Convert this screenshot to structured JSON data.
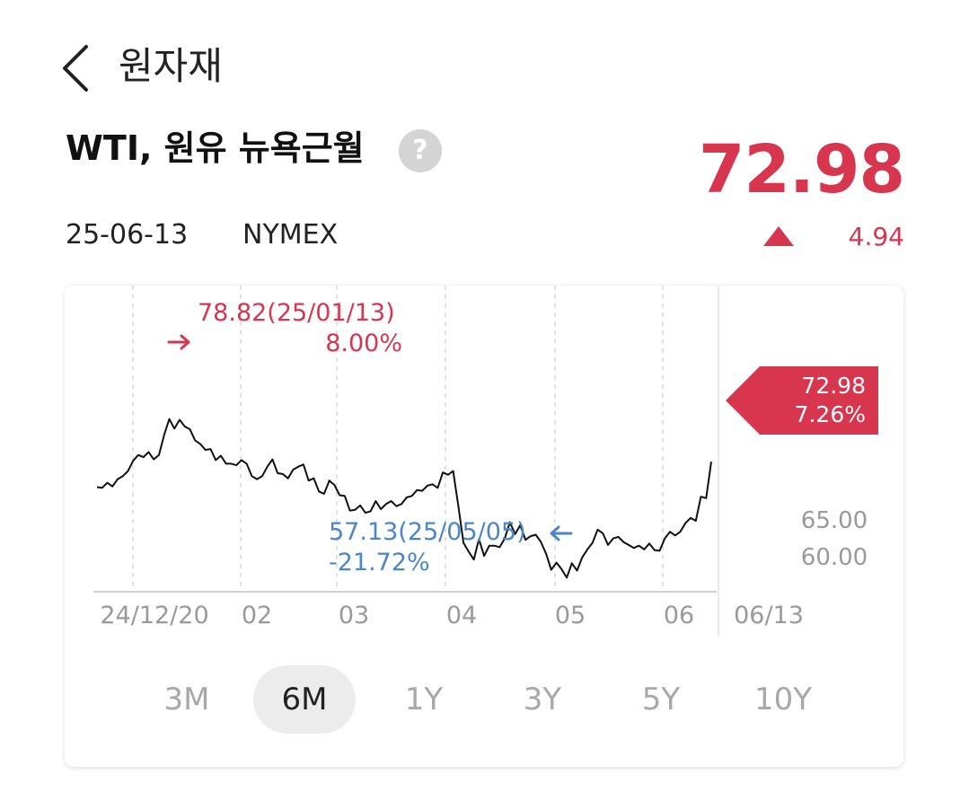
{
  "header": {
    "title": "원자재"
  },
  "asset": {
    "name": "WTI, 원유 뉴욕근월",
    "help": "?",
    "price": "72.98",
    "date": "25-06-13",
    "exchange": "NYMEX",
    "change": "4.94"
  },
  "colors": {
    "up": "#d8354f",
    "down": "#4a86c8",
    "line": "#111111",
    "grid": "#d8d8d8"
  },
  "icons": {
    "back": "chevron-left-icon",
    "help": "question-mark-icon",
    "up": "triangle-up-icon",
    "high_arrow": "arrow-right-icon",
    "low_arrow": "arrow-left-icon"
  },
  "chart_data": {
    "type": "line",
    "x_labels": [
      "24/12/20",
      "02",
      "03",
      "04",
      "05",
      "06",
      "06/13"
    ],
    "y_ticks": [
      "65.00",
      "60.00"
    ],
    "ylim": [
      53,
      80
    ],
    "grid": true,
    "series": [
      {
        "x": [
          "24/12/20",
          "24/12/23",
          "24/12/24",
          "24/12/26",
          "24/12/27",
          "24/12/30",
          "24/12/31",
          "25/01/02",
          "25/01/03",
          "25/01/06",
          "25/01/07",
          "25/01/08",
          "25/01/09",
          "25/01/10",
          "25/01/13",
          "25/01/14",
          "25/01/15",
          "25/01/16",
          "25/01/17",
          "25/01/21",
          "25/01/22",
          "25/01/23",
          "25/01/24",
          "25/01/27",
          "25/01/28",
          "25/01/29",
          "25/01/30",
          "25/01/31",
          "25/02/03",
          "25/02/04",
          "25/02/05",
          "25/02/06",
          "25/02/07",
          "25/02/10",
          "25/02/11",
          "25/02/12",
          "25/02/13",
          "25/02/14",
          "25/02/18",
          "25/02/19",
          "25/02/20",
          "25/02/21",
          "25/02/24",
          "25/02/25",
          "25/02/26",
          "25/02/27",
          "25/02/28",
          "25/03/03",
          "25/03/04",
          "25/03/05",
          "25/03/06",
          "25/03/07",
          "25/03/10",
          "25/03/11",
          "25/03/12",
          "25/03/13",
          "25/03/14",
          "25/03/17",
          "25/03/18",
          "25/03/19",
          "25/03/20",
          "25/03/21",
          "25/03/24",
          "25/03/25",
          "25/03/26",
          "25/03/27",
          "25/03/28",
          "25/03/31",
          "25/04/01",
          "25/04/02",
          "25/04/03",
          "25/04/04",
          "25/04/07",
          "25/04/08",
          "25/04/09",
          "25/04/10",
          "25/04/11",
          "25/04/14",
          "25/04/15",
          "25/04/16",
          "25/04/17",
          "25/04/21",
          "25/04/22",
          "25/04/23",
          "25/04/24",
          "25/04/25",
          "25/04/28",
          "25/04/29",
          "25/04/30",
          "25/05/01",
          "25/05/02",
          "25/05/05",
          "25/05/06",
          "25/05/07",
          "25/05/08",
          "25/05/09",
          "25/05/12",
          "25/05/13",
          "25/05/14",
          "25/05/15",
          "25/05/16",
          "25/05/19",
          "25/05/20",
          "25/05/21",
          "25/05/22",
          "25/05/23",
          "25/05/27",
          "25/05/28",
          "25/05/29",
          "25/05/30",
          "25/06/02",
          "25/06/03",
          "25/06/04",
          "25/06/05",
          "25/06/06",
          "25/06/09",
          "25/06/10",
          "25/06/11",
          "25/06/12",
          "25/06/13"
        ],
        "y": [
          69.5,
          69.4,
          70.1,
          69.6,
          70.6,
          71.0,
          71.7,
          73.1,
          73.9,
          73.6,
          74.3,
          73.3,
          73.9,
          76.6,
          78.82,
          77.5,
          78.7,
          77.8,
          77.4,
          75.9,
          75.4,
          74.6,
          74.7,
          73.2,
          73.8,
          72.7,
          72.7,
          72.5,
          73.2,
          72.7,
          71.0,
          70.6,
          71.0,
          72.3,
          73.3,
          71.4,
          71.3,
          70.7,
          71.9,
          72.3,
          72.6,
          70.4,
          70.7,
          68.9,
          68.6,
          70.4,
          69.8,
          68.4,
          68.3,
          66.3,
          66.4,
          67.0,
          66.0,
          66.2,
          67.6,
          66.5,
          67.2,
          67.6,
          66.9,
          67.2,
          68.1,
          68.3,
          69.1,
          69.0,
          69.7,
          69.9,
          69.4,
          71.5,
          71.2,
          71.7,
          66.9,
          61.9,
          60.7,
          59.6,
          62.4,
          60.1,
          61.5,
          61.5,
          61.3,
          62.5,
          64.7,
          63.1,
          64.3,
          62.3,
          62.8,
          63.0,
          62.0,
          60.4,
          58.2,
          59.2,
          58.3,
          57.13,
          59.1,
          58.1,
          59.9,
          61.0,
          61.9,
          63.7,
          63.2,
          61.6,
          62.5,
          62.7,
          62.0,
          61.6,
          61.2,
          61.5,
          61.0,
          61.8,
          60.9,
          60.8,
          62.5,
          63.4,
          62.9,
          63.4,
          64.6,
          65.3,
          64.9,
          68.2,
          68.0,
          72.98
        ]
      }
    ],
    "high": {
      "label": "78.82(25/01/13)",
      "pct": "8.00%"
    },
    "low": {
      "label": "57.13(25/05/05)",
      "pct": "-21.72%"
    },
    "last": {
      "value": "72.98",
      "pct": "7.26%"
    }
  },
  "periods": {
    "items": [
      {
        "label": "3M"
      },
      {
        "label": "6M"
      },
      {
        "label": "1Y"
      },
      {
        "label": "3Y"
      },
      {
        "label": "5Y"
      },
      {
        "label": "10Y"
      }
    ],
    "selected": "6M"
  }
}
